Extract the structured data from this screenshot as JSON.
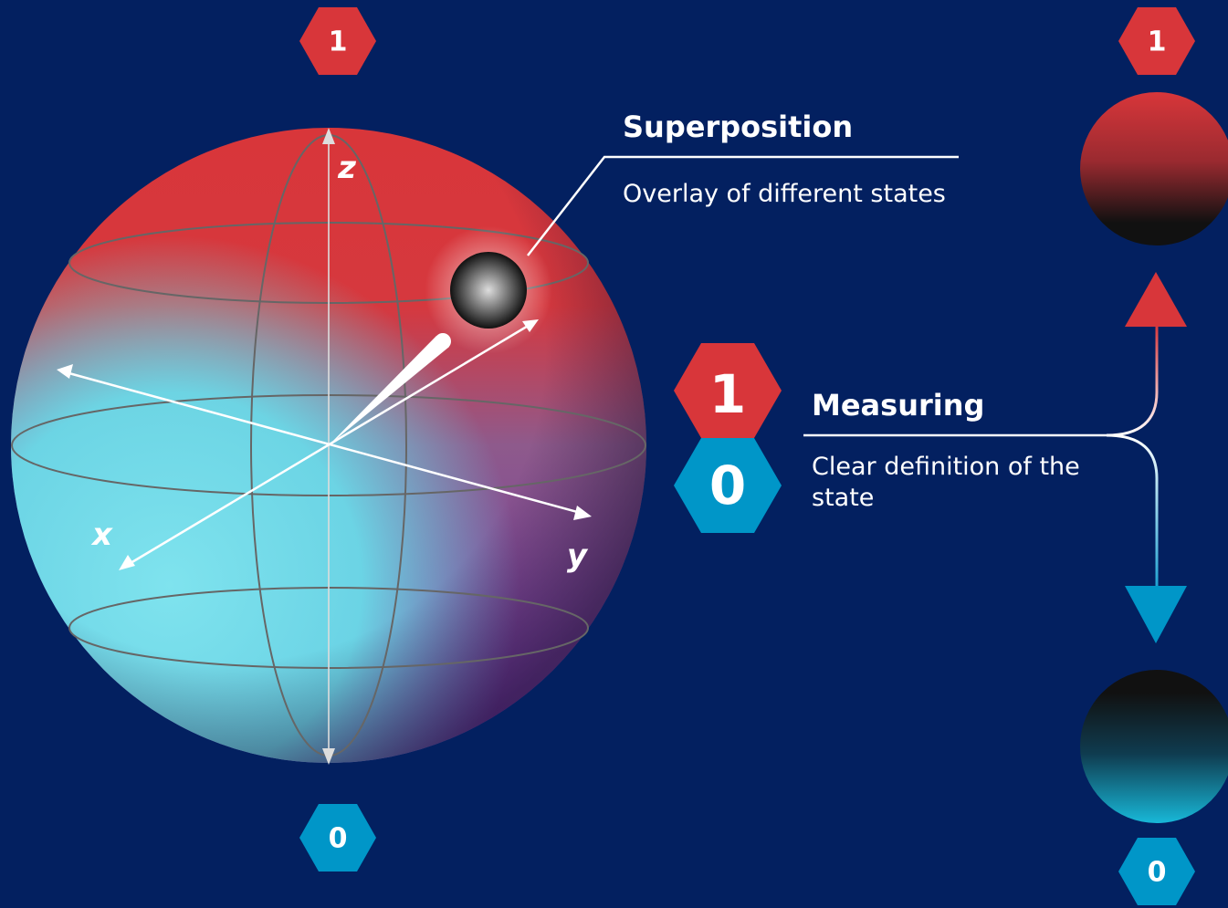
{
  "bloch_sphere": {
    "top_state": "1",
    "bottom_state": "0",
    "axes": {
      "z": "z",
      "x": "x",
      "y": "y"
    }
  },
  "superposition": {
    "title": "Superposition",
    "description": "Overlay of different states"
  },
  "measuring": {
    "badge_top": "1",
    "badge_bottom": "0",
    "title": "Measuring",
    "description": "Clear definition of the state"
  },
  "outcomes": {
    "top_state": "1",
    "bottom_state": "0"
  }
}
